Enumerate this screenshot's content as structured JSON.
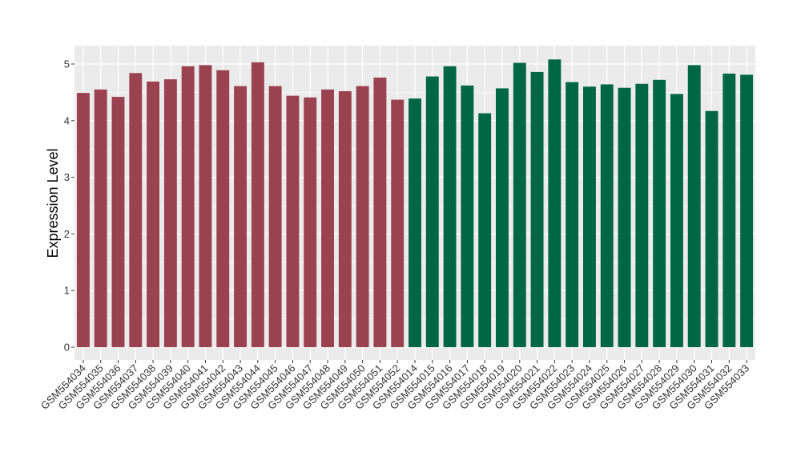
{
  "chart_data": {
    "type": "bar",
    "title": "",
    "xlabel": "",
    "ylabel": "Expression Level",
    "ylim": [
      0,
      5
    ],
    "yticks": [
      0,
      1,
      2,
      3,
      4,
      5
    ],
    "grid": true,
    "categories": [
      "GSM554034",
      "GSM554035",
      "GSM554036",
      "GSM554037",
      "GSM554038",
      "GSM554039",
      "GSM554040",
      "GSM554041",
      "GSM554042",
      "GSM554043",
      "GSM554044",
      "GSM554045",
      "GSM554046",
      "GSM554047",
      "GSM554048",
      "GSM554049",
      "GSM554050",
      "GSM554051",
      "GSM554052",
      "GSM554014",
      "GSM554015",
      "GSM554016",
      "GSM554017",
      "GSM554018",
      "GSM554019",
      "GSM554020",
      "GSM554021",
      "GSM554022",
      "GSM554023",
      "GSM554024",
      "GSM554025",
      "GSM554026",
      "GSM554027",
      "GSM554028",
      "GSM554029",
      "GSM554030",
      "GSM554031",
      "GSM554032",
      "GSM554033"
    ],
    "values": [
      4.49,
      4.55,
      4.42,
      4.84,
      4.69,
      4.73,
      4.96,
      4.98,
      4.89,
      4.61,
      5.03,
      4.61,
      4.44,
      4.41,
      4.55,
      4.52,
      4.61,
      4.76,
      4.37,
      4.39,
      4.78,
      4.96,
      4.62,
      4.13,
      4.57,
      5.02,
      4.86,
      5.08,
      4.68,
      4.6,
      4.64,
      4.58,
      4.65,
      4.72,
      4.47,
      4.98,
      4.17,
      4.83,
      4.81
    ],
    "groups": [
      1,
      1,
      1,
      1,
      1,
      1,
      1,
      1,
      1,
      1,
      1,
      1,
      1,
      1,
      1,
      1,
      1,
      1,
      1,
      2,
      2,
      2,
      2,
      2,
      2,
      2,
      2,
      2,
      2,
      2,
      2,
      2,
      2,
      2,
      2,
      2,
      2,
      2,
      2
    ],
    "colors": {
      "group1": "#9b4250",
      "group2": "#006644",
      "panel": "#ebebeb",
      "grid": "#ffffff"
    }
  }
}
